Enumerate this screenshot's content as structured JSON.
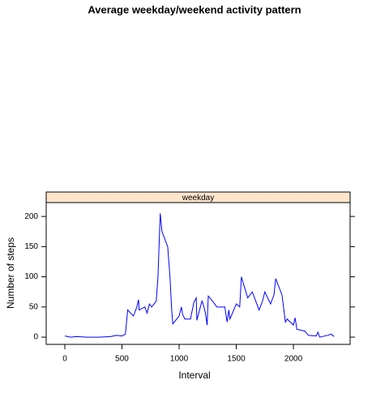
{
  "chart_data": {
    "type": "line",
    "title": "Average weekday/weekend activity pattern",
    "panel": "weekday",
    "xlabel": "Interval",
    "ylabel": "Number of steps",
    "x": [
      0,
      50,
      100,
      200,
      300,
      400,
      450,
      500,
      530,
      550,
      600,
      630,
      645,
      650,
      700,
      720,
      740,
      760,
      800,
      815,
      830,
      835,
      845,
      850,
      900,
      920,
      935,
      945,
      1000,
      1020,
      1030,
      1050,
      1100,
      1110,
      1130,
      1150,
      1155,
      1200,
      1210,
      1230,
      1245,
      1255,
      1300,
      1330,
      1400,
      1420,
      1435,
      1445,
      1500,
      1530,
      1545,
      1600,
      1640,
      1700,
      1730,
      1750,
      1800,
      1830,
      1845,
      1900,
      1930,
      1945,
      2000,
      2015,
      2030,
      2100,
      2130,
      2200,
      2215,
      2230,
      2300,
      2330,
      2355
    ],
    "series": [
      {
        "name": "weekday",
        "color": "#0000ff",
        "values": [
          2,
          0,
          1,
          0,
          0,
          1,
          3,
          2,
          5,
          45,
          35,
          50,
          62,
          45,
          50,
          40,
          55,
          50,
          60,
          100,
          180,
          205,
          185,
          175,
          150,
          100,
          45,
          22,
          35,
          50,
          38,
          30,
          30,
          40,
          58,
          65,
          28,
          60,
          55,
          40,
          20,
          68,
          58,
          50,
          50,
          25,
          45,
          30,
          55,
          50,
          100,
          65,
          75,
          45,
          60,
          75,
          55,
          70,
          97,
          70,
          25,
          30,
          20,
          32,
          13,
          10,
          3,
          2,
          8,
          0,
          3,
          5,
          1
        ]
      }
    ],
    "xlim": [
      -163,
      2496
    ],
    "xticks": [
      0,
      500,
      1000,
      1500,
      2000
    ],
    "ylim": [
      -12,
      223
    ],
    "yticks": [
      0,
      50,
      100,
      150,
      200
    ],
    "strip_color": "#ffe5cc"
  }
}
